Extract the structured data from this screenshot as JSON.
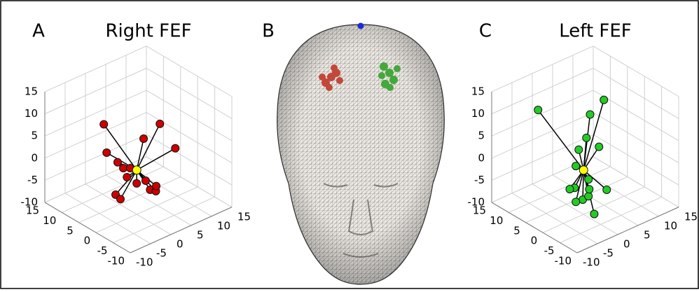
{
  "chart_data": [
    {
      "type": "scatter3d",
      "panel_label": "A",
      "title": "Right FEF",
      "xlim": [
        -10,
        15
      ],
      "ylim": [
        -10,
        15
      ],
      "zlim": [
        -10,
        15
      ],
      "xticks": [
        -10,
        -5,
        0,
        5,
        10,
        15
      ],
      "yticks": [
        -10,
        -5,
        0,
        5,
        10,
        15
      ],
      "zticks": [
        -10,
        -5,
        0,
        5,
        10,
        15
      ],
      "grid": true,
      "center": {
        "x": 0,
        "y": 0,
        "z": 0,
        "color": "#ffff00"
      },
      "series": [
        {
          "color": "#cc0000",
          "x": [
            -8.1,
            -7.4,
            -4.7,
            -3.3,
            -2.4,
            -5.2,
            -4.0,
            0,
            2.2,
            3.3,
            4.7,
            4.8,
            1.7,
            5.7,
            9.5,
            -1.6
          ],
          "y": [
            0,
            0,
            0,
            0,
            0,
            0,
            0,
            0,
            0,
            0,
            0,
            0,
            0,
            0,
            0,
            0
          ],
          "z": [
            13.7,
            7.0,
            3.7,
            1.8,
            -0.6,
            -3.4,
            -4.9,
            -3.0,
            -3.3,
            -5.8,
            -6.7,
            -5.6,
            6.4,
            8.1,
            1.0,
            1.1
          ]
        }
      ]
    },
    {
      "type": "scatter3d",
      "panel_label": "C",
      "title": "Left FEF",
      "xlim": [
        -10,
        15
      ],
      "ylim": [
        -10,
        15
      ],
      "zlim": [
        -10,
        15
      ],
      "xticks": [
        -10,
        -5,
        0,
        5,
        10,
        15
      ],
      "yticks": [
        -10,
        -5,
        0,
        5,
        10,
        15
      ],
      "zticks": [
        -10,
        -5,
        0,
        5,
        10,
        15
      ],
      "grid": true,
      "center": {
        "x": 0,
        "y": 0,
        "z": 0,
        "color": "#ffff00"
      },
      "series": [
        {
          "color": "#22cc22",
          "x": [
            -7.0,
            1.6,
            5.0,
            0.7,
            3.8,
            -1.2,
            -1.9,
            1.2,
            5.7,
            -2.2,
            -3.4,
            -0.2,
            -1.9,
            1.2,
            0.1,
            1.4
          ],
          "y": [
            5,
            0,
            0,
            0,
            0,
            0,
            0,
            0,
            0,
            0,
            0,
            0,
            0,
            0,
            -3,
            0
          ],
          "z": [
            14.2,
            11.9,
            13.8,
            7.0,
            3.7,
            5.1,
            1.7,
            -2.6,
            -6.8,
            -3.1,
            -2.9,
            -6.6,
            -6.4,
            -6.4,
            -8.6,
            -4.9
          ]
        }
      ]
    }
  ],
  "panel_b": {
    "label": "B"
  }
}
